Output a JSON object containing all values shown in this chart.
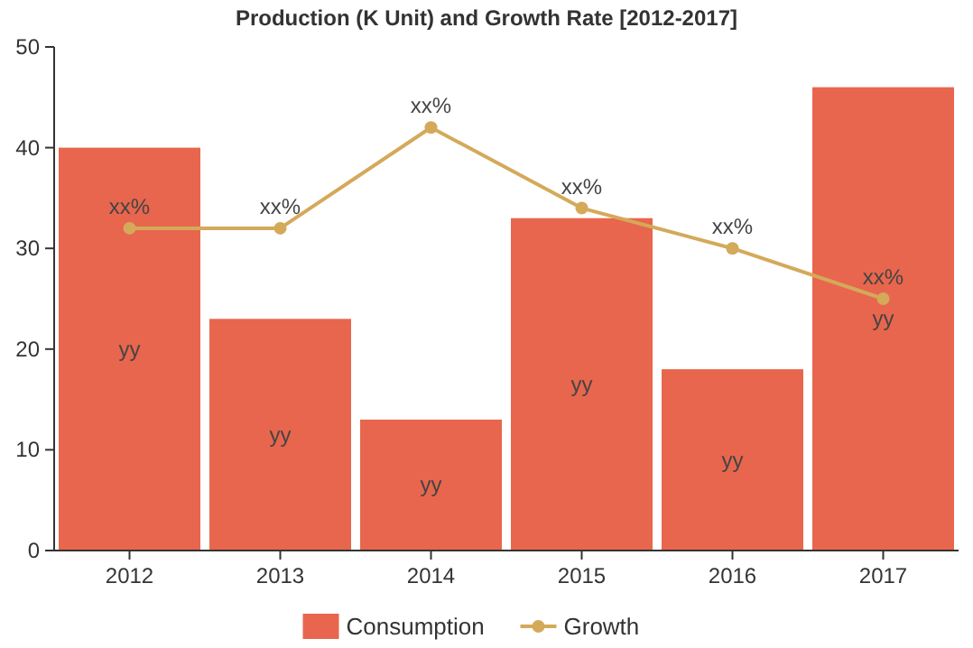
{
  "chart_data": {
    "type": "bar",
    "title": "Production (K Unit) and Growth Rate [2012-2017]",
    "categories": [
      "2012",
      "2013",
      "2014",
      "2015",
      "2016",
      "2017"
    ],
    "series": [
      {
        "name": "Consumption",
        "color": "#e8664d",
        "values": [
          40,
          23,
          13,
          33,
          18,
          46
        ],
        "value_labels": [
          "yy",
          "yy",
          "yy",
          "yy",
          "yy",
          "yy"
        ]
      },
      {
        "name": "Growth",
        "type": "line",
        "color": "#d4a95a",
        "values": [
          32,
          32,
          42,
          34,
          30,
          25
        ],
        "value_labels": [
          "xx%",
          "xx%",
          "xx%",
          "xx%",
          "xx%",
          "xx%"
        ],
        "marker": "circle"
      }
    ],
    "ylim": [
      0,
      50
    ],
    "yticks": [
      0,
      10,
      20,
      30,
      40,
      50
    ],
    "grid": false,
    "legend": "bottom"
  }
}
